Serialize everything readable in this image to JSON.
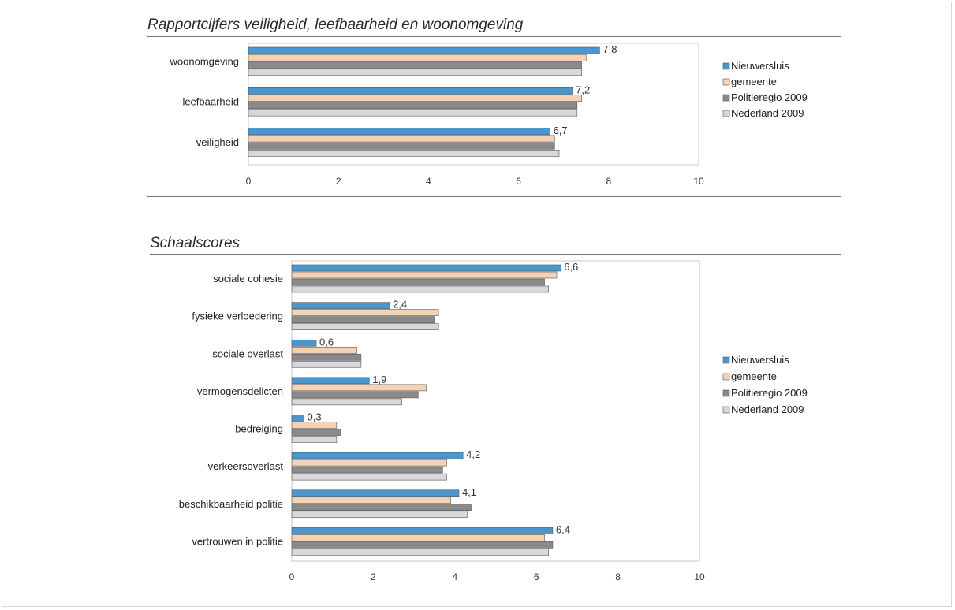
{
  "chart_data": [
    {
      "type": "bar",
      "orientation": "horizontal",
      "title": "Rapportcijfers veiligheid, leefbaarheid en woonomgeving",
      "categories": [
        "woonomgeving",
        "leefbaarheid",
        "veiligheid"
      ],
      "series": [
        {
          "name": "Nieuwersluis",
          "values": [
            7.8,
            7.2,
            6.7
          ],
          "labels": [
            "7,8",
            "7,2",
            "6,7"
          ]
        },
        {
          "name": "gemeente",
          "values": [
            7.5,
            7.4,
            6.8
          ]
        },
        {
          "name": "Politieregio 2009",
          "values": [
            7.4,
            7.3,
            6.8
          ]
        },
        {
          "name": "Nederland 2009",
          "values": [
            7.4,
            7.3,
            6.9
          ]
        }
      ],
      "xlim": [
        0,
        10
      ],
      "xticks": [
        "0",
        "2",
        "4",
        "6",
        "8",
        "10"
      ],
      "legend": "right",
      "grid": false
    },
    {
      "type": "bar",
      "orientation": "horizontal",
      "title": "Schaalscores",
      "categories": [
        "sociale cohesie",
        "fysieke verloedering",
        "sociale overlast",
        "vermogensdelicten",
        "bedreiging",
        "verkeersoverlast",
        "beschikbaarheid politie",
        "vertrouwen in politie"
      ],
      "series": [
        {
          "name": "Nieuwersluis",
          "values": [
            6.6,
            2.4,
            0.6,
            1.9,
            0.3,
            4.2,
            4.1,
            6.4
          ],
          "labels": [
            "6,6",
            "2,4",
            "0,6",
            "1,9",
            "0,3",
            "4,2",
            "4,1",
            "6,4"
          ]
        },
        {
          "name": "gemeente",
          "values": [
            6.5,
            3.6,
            1.6,
            3.3,
            1.1,
            3.8,
            3.9,
            6.2
          ]
        },
        {
          "name": "Politieregio 2009",
          "values": [
            6.2,
            3.5,
            1.7,
            3.1,
            1.2,
            3.7,
            4.4,
            6.4
          ]
        },
        {
          "name": "Nederland 2009",
          "values": [
            6.3,
            3.6,
            1.7,
            2.7,
            1.1,
            3.8,
            4.3,
            6.3
          ]
        }
      ],
      "xlim": [
        0,
        10
      ],
      "xticks": [
        "0",
        "2",
        "4",
        "6",
        "8",
        "10"
      ],
      "legend": "right",
      "grid": false
    }
  ],
  "colors": {
    "Nieuwersluis": "#4a97cf",
    "gemeente": "#f4d2b4",
    "Politieregio 2009": "#8a8a8a",
    "Nederland 2009": "#d8d8dc"
  }
}
